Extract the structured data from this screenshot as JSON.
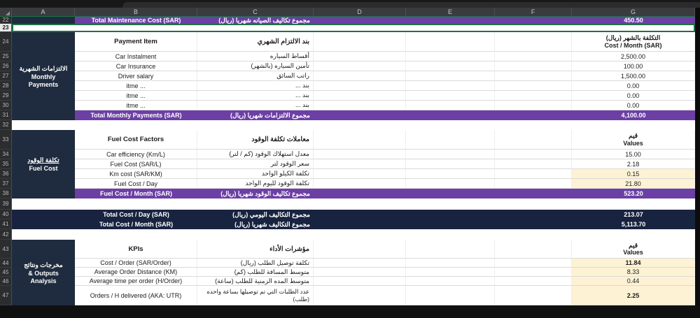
{
  "colors": {
    "purple": "#6c3fa5",
    "navy_section": "#1f2b3e",
    "navy_total": "#18233f",
    "cream": "#fdf2d3",
    "selection_green": "#1e7145"
  },
  "columns": [
    "A",
    "B",
    "C",
    "D",
    "E",
    "F",
    "G"
  ],
  "gutter": [
    "22",
    "23",
    "24",
    "25",
    "26",
    "27",
    "28",
    "29",
    "30",
    "31",
    "32",
    "33",
    "34",
    "35",
    "36",
    "37",
    "38",
    "39",
    "40",
    "41",
    "42",
    "43",
    "44",
    "45",
    "46",
    "47"
  ],
  "maintenance_total": {
    "en": "Total Maintenance Cost (SAR)",
    "ar": "مجموع تكاليف الصيانه شهريا (ريال)",
    "value": "450.50"
  },
  "monthly": {
    "section_ar": "الالتزامات الشهرية",
    "section_en1": "Monthly",
    "section_en2": "Payments",
    "header_en": "Payment Item",
    "header_ar": "بند الالتزام الشهري",
    "value_header_ar": "التكلفة بالشهر  (ريال)",
    "value_header_en": "Cost / Month (SAR)",
    "items": [
      {
        "en": "Car Instalment",
        "ar": "أقساط السياره",
        "value": "2,500.00"
      },
      {
        "en": "Car Insurance",
        "ar": "تأمين السياره (بالشهر)",
        "value": "100.00"
      },
      {
        "en": "Driver salary",
        "ar": "راتب السائق",
        "value": "1,500.00"
      },
      {
        "en": "itme ...",
        "ar": "بند ...",
        "value": "0.00"
      },
      {
        "en": "itme ...",
        "ar": "بند ...",
        "value": "0.00"
      },
      {
        "en": "itme ...",
        "ar": "بند ...",
        "value": "0.00"
      }
    ],
    "total_en": "Total Monthly Payments (SAR)",
    "total_ar": "مجموع الالتزامات شهريا (ريال)",
    "total_value": "4,100.00"
  },
  "fuel": {
    "section_ar": "تكلفة الوقود",
    "section_en": "Fuel Cost",
    "header_en": "Fuel Cost Factors",
    "header_ar": "معاملات تكلفة الوقود",
    "value_header_ar": "قيم",
    "value_header_en": "Values",
    "items": [
      {
        "en": "Car efficiency (Km/L)",
        "ar": "معدل استهلاك الوقود (كم / لتر)",
        "value": "15.00"
      },
      {
        "en": "Fuel Cost (SAR/L)",
        "ar": "سعر الوقود لتر",
        "value": "2.18"
      },
      {
        "en": "Km cost (SAR/KM)",
        "ar": "تكلفة الكيلو الواحد",
        "value": "0.15"
      },
      {
        "en": "Fuel Cost / Day",
        "ar": "تكلفة الوقود لليوم الواحد",
        "value": "21.80"
      }
    ],
    "total_en": "Fuel Cost / Month (SAR)",
    "total_ar": "مجموع تكاليف الوقود شهريا (ريال)",
    "total_value": "523.20"
  },
  "grand_totals": [
    {
      "en": "Total Cost / Day (SAR)",
      "ar": "مجموع التكاليف اليومي (ريال)",
      "value": "213.07"
    },
    {
      "en": "Total Cost / Month (SAR)",
      "ar": "مجموع التكاليف شهريا (ريال)",
      "value": "5,113.70"
    }
  ],
  "kpi": {
    "section_ar": "مخرجات ونتائج",
    "section_en1": "& Outputs",
    "section_en2": "Analysis",
    "header_en": "KPIs",
    "header_ar": "مؤشرات الأداء",
    "value_header_ar": "قيم",
    "value_header_en": "Values",
    "items": [
      {
        "en": "Cost / Order (SAR/Order)",
        "ar": "تكلفة توصيل الطلب (ريال)",
        "value": "11.84"
      },
      {
        "en": "Average Order Distance (KM)",
        "ar": "متوسط المسافة للطلب (كم)",
        "value": "8.33"
      },
      {
        "en": "Average time per order (H/Order)",
        "ar": "متوسط المده الزمنية للطلب (ساعة)",
        "value": "0.44"
      },
      {
        "en": "Orders / H delivered (AKA: UTR)",
        "ar": "عدد الطلبات التي تم توصيلها بساعة واحده (طلب)",
        "value": "2.25"
      }
    ]
  }
}
